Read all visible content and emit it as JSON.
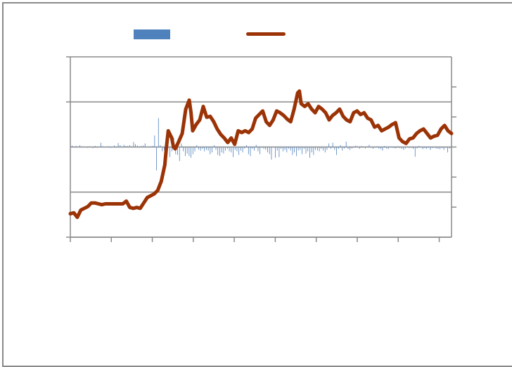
{
  "chart_data": {
    "type": "bar+line",
    "title": "",
    "legend": {
      "placement": "top",
      "entries": [
        {
          "swatch": "bar",
          "label": ""
        },
        {
          "swatch": "line",
          "label": ""
        }
      ]
    },
    "grid": {
      "horizontal": true,
      "vertical": false
    },
    "x": {
      "categories": 200,
      "tick_count": 10
    },
    "y_left": {
      "ylim": [
        -1,
        1
      ],
      "gridlines": [
        -1,
        -0.5,
        0,
        0.5,
        1
      ]
    },
    "y_right": {
      "ylim": [
        -1.5,
        1.5
      ],
      "ticks": [
        -1,
        -0.5,
        0,
        0.5,
        1
      ]
    },
    "series": [
      {
        "type": "bar",
        "axis": "left",
        "color": "#4f81bd",
        "values": [
          0.02,
          0.04,
          0.01,
          0.03,
          0.0,
          0.05,
          0.02,
          -0.01,
          0.01,
          -0.02,
          0.02,
          0.0,
          -0.03,
          0.03,
          -0.02,
          0.01,
          0.12,
          0.02,
          0.0,
          0.01,
          0.02,
          -0.02,
          0.0,
          0.04,
          -0.02,
          0.11,
          0.05,
          0.02,
          0.06,
          0.03,
          0.03,
          0.05,
          0.02,
          0.14,
          0.08,
          0.04,
          0.02,
          0.03,
          0.04,
          0.1,
          0.01,
          0.02,
          0.02,
          0.03,
          0.32,
          -0.65,
          0.8,
          0.05,
          -0.12,
          -0.08,
          -0.15,
          -0.04,
          -0.28,
          -0.12,
          0.25,
          -0.2,
          -0.22,
          -0.39,
          0.1,
          -0.12,
          -0.25,
          -0.18,
          -0.25,
          -0.3,
          -0.2,
          -0.12,
          0.05,
          -0.07,
          -0.1,
          -0.05,
          -0.12,
          -0.08,
          -0.1,
          -0.2,
          -0.15,
          0.05,
          -0.08,
          -0.22,
          -0.25,
          -0.15,
          -0.18,
          -0.1,
          -0.05,
          -0.12,
          -0.15,
          -0.28,
          -0.08,
          -0.12,
          -0.22,
          -0.1,
          -0.15,
          -0.04,
          0.05,
          -0.2,
          -0.25,
          -0.05,
          -0.1,
          0.06,
          -0.12,
          -0.2,
          -0.02,
          -0.05,
          -0.08,
          -0.15,
          -0.2,
          -0.35,
          -0.02,
          -0.3,
          -0.1,
          -0.28,
          -0.05,
          -0.12,
          -0.08,
          -0.15,
          -0.05,
          -0.1,
          -0.22,
          -0.15,
          -0.25,
          -0.1,
          -0.08,
          -0.2,
          -0.05,
          -0.18,
          -0.12,
          -0.3,
          -0.15,
          -0.22,
          -0.08,
          -0.1,
          -0.12,
          -0.05,
          -0.1,
          -0.15,
          -0.08,
          0.1,
          -0.05,
          0.12,
          -0.08,
          -0.22,
          -0.05,
          0.05,
          -0.1,
          -0.04,
          0.15,
          -0.05,
          -0.08,
          -0.04,
          -0.02,
          0.04,
          0.02,
          -0.05,
          0.03,
          -0.02,
          -0.04,
          0.02,
          0.06,
          -0.02,
          -0.05,
          -0.02,
          0.02,
          -0.04,
          -0.06,
          -0.1,
          0.03,
          -0.04,
          -0.06,
          0.02,
          -0.02,
          -0.03,
          -0.04,
          0.02,
          -0.03,
          -0.05,
          -0.08,
          -0.04,
          0.02,
          -0.03,
          -0.02,
          -0.05,
          -0.27,
          -0.04,
          0.03,
          -0.02,
          -0.06,
          -0.03,
          -0.05,
          -0.02,
          -0.08,
          -0.03,
          -0.02,
          -0.04,
          -0.05,
          -0.06,
          -0.03,
          -0.08,
          -0.02,
          -0.15,
          -0.04,
          -0.03
        ]
      },
      {
        "type": "line",
        "axis": "left",
        "color": "#9b3306",
        "points": [
          [
            0,
            -0.74
          ],
          [
            2,
            -0.73
          ],
          [
            4,
            -0.78
          ],
          [
            6,
            -0.7
          ],
          [
            10,
            -0.66
          ],
          [
            12,
            -0.62
          ],
          [
            14,
            -0.62
          ],
          [
            18,
            -0.64
          ],
          [
            20,
            -0.63
          ],
          [
            26,
            -0.63
          ],
          [
            30,
            -0.63
          ],
          [
            32,
            -0.6
          ],
          [
            34,
            -0.67
          ],
          [
            36,
            -0.68
          ],
          [
            38,
            -0.67
          ],
          [
            40,
            -0.68
          ],
          [
            42,
            -0.62
          ],
          [
            44,
            -0.56
          ],
          [
            46,
            -0.54
          ],
          [
            48,
            -0.52
          ],
          [
            50,
            -0.48
          ],
          [
            52,
            -0.38
          ],
          [
            54,
            -0.2
          ],
          [
            55,
            0.0
          ],
          [
            56,
            0.18
          ],
          [
            58,
            0.1
          ],
          [
            59,
            0.0
          ],
          [
            60,
            -0.02
          ],
          [
            62,
            0.06
          ],
          [
            64,
            0.15
          ],
          [
            66,
            0.42
          ],
          [
            68,
            0.52
          ],
          [
            69,
            0.38
          ],
          [
            70,
            0.18
          ],
          [
            72,
            0.25
          ],
          [
            74,
            0.3
          ],
          [
            76,
            0.45
          ],
          [
            78,
            0.33
          ],
          [
            80,
            0.34
          ],
          [
            82,
            0.28
          ],
          [
            84,
            0.2
          ],
          [
            86,
            0.14
          ],
          [
            88,
            0.1
          ],
          [
            90,
            0.05
          ],
          [
            92,
            0.1
          ],
          [
            94,
            0.03
          ],
          [
            96,
            0.18
          ],
          [
            98,
            0.16
          ],
          [
            100,
            0.18
          ],
          [
            102,
            0.16
          ],
          [
            104,
            0.2
          ],
          [
            106,
            0.32
          ],
          [
            108,
            0.36
          ],
          [
            110,
            0.4
          ],
          [
            112,
            0.28
          ],
          [
            114,
            0.24
          ],
          [
            116,
            0.3
          ],
          [
            118,
            0.4
          ],
          [
            120,
            0.38
          ],
          [
            122,
            0.35
          ],
          [
            124,
            0.31
          ],
          [
            126,
            0.28
          ],
          [
            128,
            0.42
          ],
          [
            130,
            0.6
          ],
          [
            131,
            0.62
          ],
          [
            132,
            0.48
          ],
          [
            134,
            0.45
          ],
          [
            136,
            0.48
          ],
          [
            138,
            0.42
          ],
          [
            140,
            0.38
          ],
          [
            142,
            0.45
          ],
          [
            144,
            0.42
          ],
          [
            146,
            0.38
          ],
          [
            148,
            0.3
          ],
          [
            150,
            0.35
          ],
          [
            152,
            0.38
          ],
          [
            154,
            0.42
          ],
          [
            156,
            0.34
          ],
          [
            158,
            0.3
          ],
          [
            160,
            0.28
          ],
          [
            162,
            0.38
          ],
          [
            164,
            0.4
          ],
          [
            166,
            0.36
          ],
          [
            168,
            0.38
          ],
          [
            170,
            0.32
          ],
          [
            172,
            0.3
          ],
          [
            174,
            0.22
          ],
          [
            176,
            0.24
          ],
          [
            178,
            0.18
          ],
          [
            180,
            0.2
          ],
          [
            182,
            0.22
          ],
          [
            184,
            0.25
          ],
          [
            186,
            0.27
          ],
          [
            188,
            0.1
          ],
          [
            190,
            0.06
          ],
          [
            192,
            0.04
          ],
          [
            194,
            0.09
          ],
          [
            196,
            0.1
          ],
          [
            198,
            0.15
          ],
          [
            200,
            0.18
          ],
          [
            202,
            0.2
          ],
          [
            204,
            0.15
          ],
          [
            206,
            0.1
          ],
          [
            208,
            0.12
          ],
          [
            210,
            0.13
          ],
          [
            212,
            0.2
          ],
          [
            214,
            0.24
          ],
          [
            216,
            0.18
          ],
          [
            218,
            0.15
          ]
        ]
      }
    ]
  }
}
